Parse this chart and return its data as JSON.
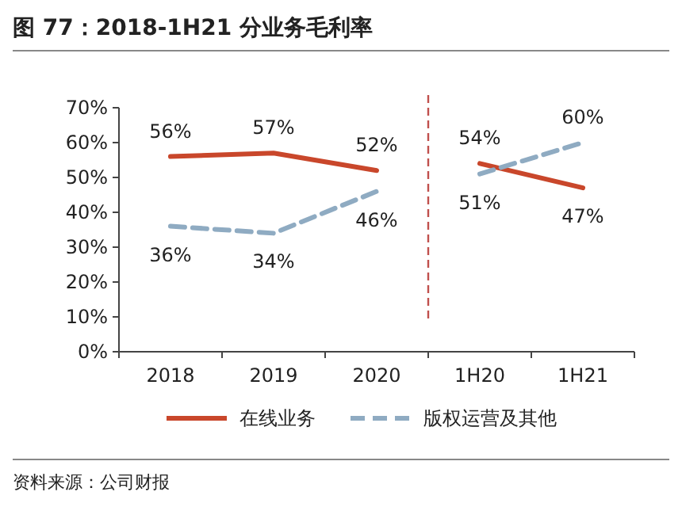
{
  "chart_data": {
    "type": "line",
    "title": "图 77：2018-1H21 分业务毛利率",
    "categories": [
      "2018",
      "2019",
      "2020",
      "1H20",
      "1H21"
    ],
    "series": [
      {
        "name": "在线业务",
        "color": "#c9472b",
        "values": [
          56,
          57,
          52,
          54,
          47
        ],
        "value_labels": [
          "56%",
          "57%",
          "52%",
          "54%",
          "47%"
        ]
      },
      {
        "name": "版权运营及其他",
        "color": "#8fabc2",
        "line_style": "dashed",
        "values": [
          36,
          34,
          46,
          51,
          60
        ],
        "value_labels": [
          "36%",
          "34%",
          "46%",
          "51%",
          "60%"
        ]
      }
    ],
    "ylim": [
      0,
      70
    ],
    "yticks": [
      {
        "value": 0,
        "label": "0%"
      },
      {
        "value": 10,
        "label": "10%"
      },
      {
        "value": 20,
        "label": "20%"
      },
      {
        "value": 30,
        "label": "30%"
      },
      {
        "value": 40,
        "label": "40%"
      },
      {
        "value": 50,
        "label": "50%"
      },
      {
        "value": 60,
        "label": "60%"
      },
      {
        "value": 70,
        "label": "70%"
      }
    ],
    "legend": "bottom",
    "grid": false,
    "marker": "none",
    "annotations": [
      "资料来源：公司财报"
    ]
  }
}
